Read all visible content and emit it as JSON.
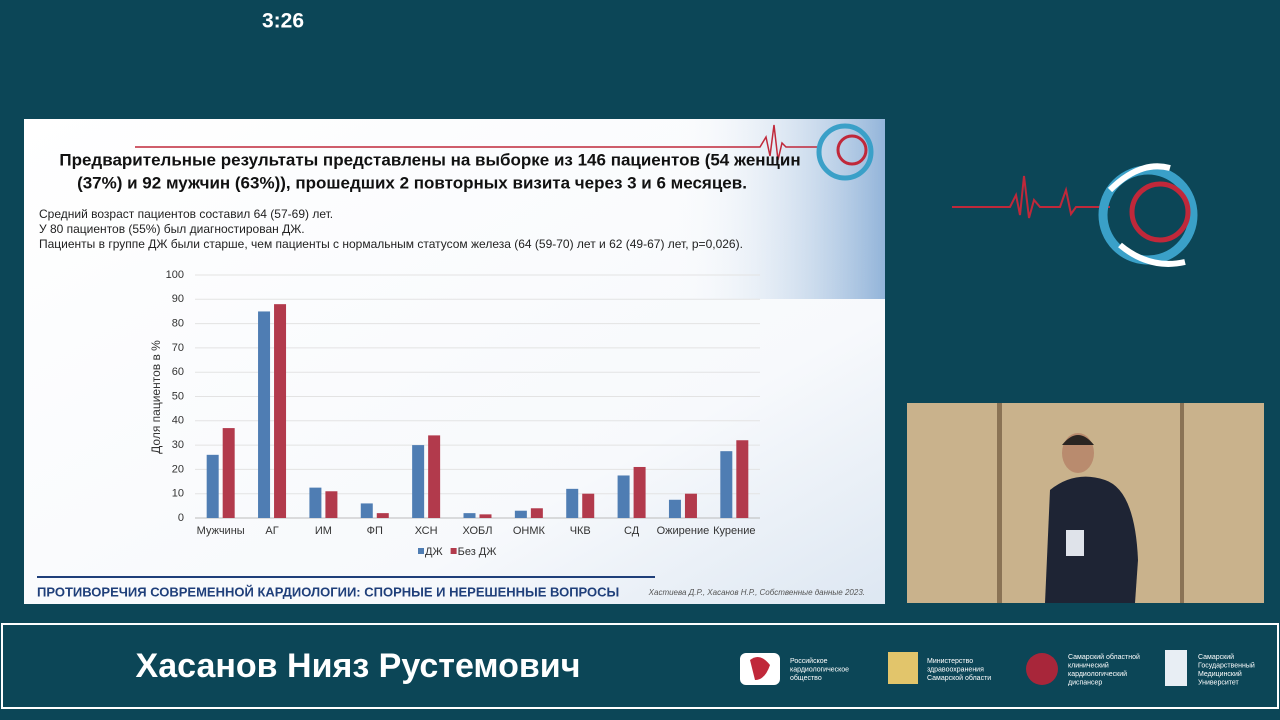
{
  "timer": "3:26",
  "slide": {
    "title": [
      "Предварительные результаты представлены на выборке из 146 пациентов (54 женщин",
      "(37%) и 92 мужчин (63%)), прошедших 2 повторных визита через 3 и 6 месяцев."
    ],
    "notes": [
      "Средний возраст пациентов составил 64 (57-69) лет.",
      "У 80 пациентов (55%) был диагностирован ДЖ.",
      "Пациенты в группе ДЖ были старше, чем пациенты с нормальным статусом железа (64 (59-70) лет  и 62 (49-67) лет, p=0,026)."
    ],
    "footer": "ПРОТИВОРЕЧИЯ СОВРЕМЕННОЙ КАРДИОЛОГИИ: СПОРНЫЕ И НЕРЕШЕННЫЕ ВОПРОСЫ",
    "citation": "Хастиева Д.Р., Хасанов Н.Р., Собственные данные 2023."
  },
  "chart_data": {
    "type": "bar",
    "y_label": "Доля пациентов в %",
    "categories": [
      "Мужчины",
      "АГ",
      "ИМ",
      "ФП",
      "ХСН",
      "ХОБЛ",
      "ОНМК",
      "ЧКВ",
      "СД",
      "Ожирение",
      "Курение"
    ],
    "series": [
      {
        "name": "ДЖ",
        "color": "#4f7db3",
        "values": [
          26,
          85,
          12.5,
          6,
          30,
          2,
          3,
          12,
          17.5,
          7.5,
          27.5
        ]
      },
      {
        "name": "Без ДЖ",
        "color": "#b23a4c",
        "values": [
          37,
          88,
          11,
          2,
          34,
          1.5,
          4,
          10,
          21,
          10,
          32
        ]
      }
    ],
    "ylim": [
      0,
      100
    ],
    "yticks": [
      0,
      10,
      20,
      30,
      40,
      50,
      60,
      70,
      80,
      90,
      100
    ],
    "grid": true,
    "legend": "bottom"
  },
  "speaker": "Хасанов Нияз Рустемович",
  "logos": [
    [
      "Российское",
      "кардиологическое",
      "общество"
    ],
    [
      "Министерство",
      "здравоохранения",
      "Самарской области"
    ],
    [
      "Самарский областной",
      "клинический",
      "кардиологический",
      "диспансер"
    ],
    [
      "Самарский",
      "Государственный",
      "Медицинский",
      "Университет"
    ]
  ]
}
